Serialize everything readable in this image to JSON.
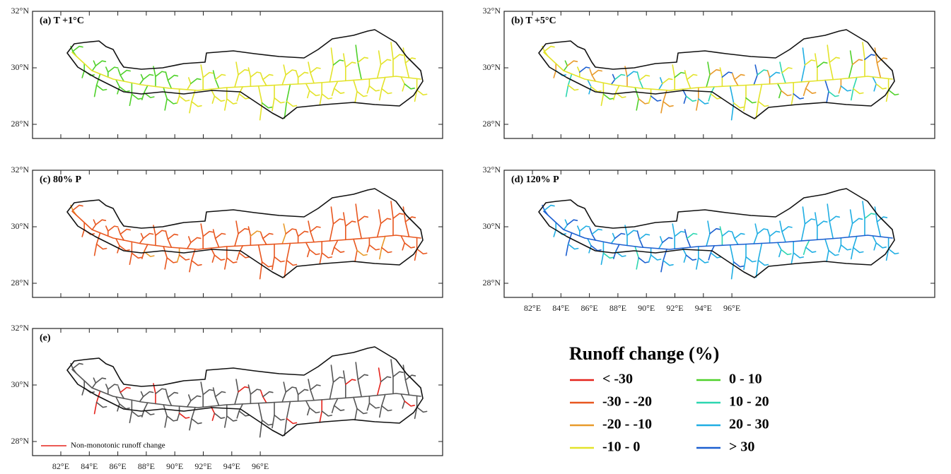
{
  "panels": [
    {
      "label": "(a) T +1°C",
      "lat_ticks": [
        "32°N",
        "30°N",
        "28°N"
      ]
    },
    {
      "label": "(b) T +5°C",
      "lat_ticks": [
        "32°N",
        "30°N",
        "28°N"
      ]
    },
    {
      "label": "(c) 80% P",
      "lat_ticks": [
        "32°N",
        "30°N",
        "28°N"
      ]
    },
    {
      "label": "(d) 120% P",
      "lat_ticks": [
        "32°N",
        "30°N",
        "28°N"
      ],
      "lon_ticks": [
        "82°E",
        "84°E",
        "86°E",
        "88°E",
        "90°E",
        "92°E",
        "94°E",
        "96°E"
      ]
    },
    {
      "label": "(e)",
      "lat_ticks": [
        "32°N",
        "30°N",
        "28°N"
      ],
      "lon_ticks": [
        "82°E",
        "84°E",
        "86°E",
        "88°E",
        "90°E",
        "92°E",
        "94°E",
        "96°E"
      ]
    }
  ],
  "legend": {
    "title": "Runoff change (%)",
    "items": [
      {
        "label": "< -30",
        "color": "#e5231c"
      },
      {
        "label": "-30 - -20",
        "color": "#e8571f"
      },
      {
        "label": "-20 - -10",
        "color": "#e89a2a"
      },
      {
        "label": "-10 - 0",
        "color": "#e3e32a"
      },
      {
        "label": "0 - 10",
        "color": "#4fd12a"
      },
      {
        "label": "10 - 20",
        "color": "#2cd6b0"
      },
      {
        "label": "20 - 30",
        "color": "#20aee3"
      },
      {
        "label": "> 30",
        "color": "#1c5fd0"
      }
    ]
  },
  "note": {
    "label": "Non-monotonic runoff change",
    "color": "#e5231c"
  }
}
